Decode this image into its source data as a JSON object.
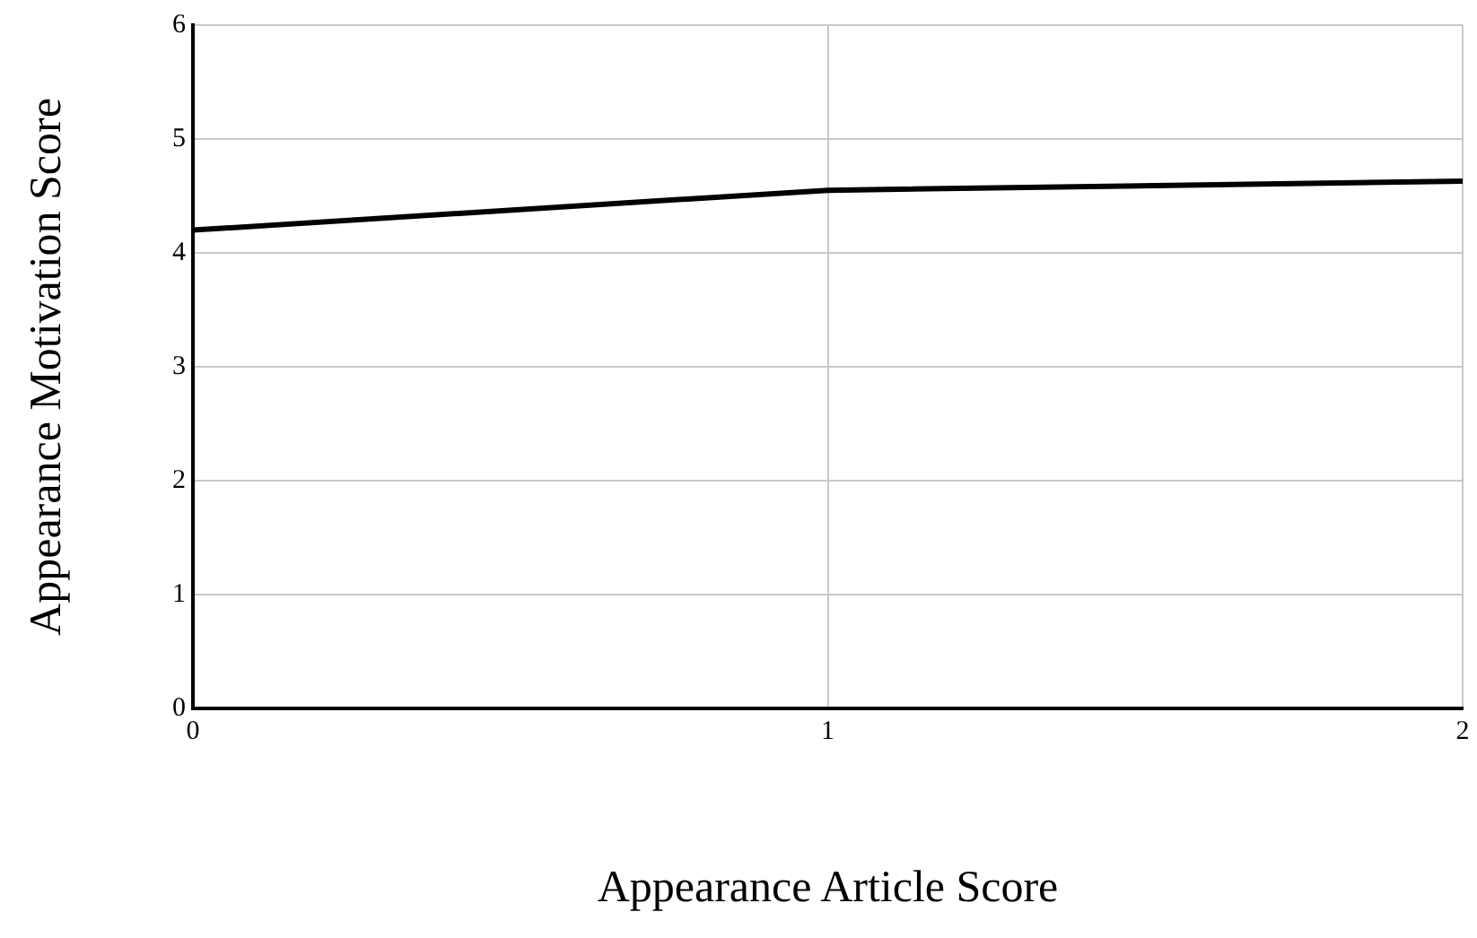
{
  "chart_data": {
    "type": "line",
    "xlabel": "Appearance Article Score",
    "ylabel": "Appearance Motivation Score",
    "x": [
      0,
      1,
      2
    ],
    "series": [
      {
        "color": "#000000",
        "values": [
          4.2,
          4.55,
          4.63
        ]
      }
    ],
    "xlim": [
      0,
      2
    ],
    "xticks": [
      0,
      1,
      2
    ],
    "ylim": [
      0,
      6
    ],
    "yticks": [
      0,
      1,
      2,
      3,
      4,
      5,
      6
    ],
    "grid": true,
    "legend": false,
    "marker": "none",
    "line_style": "solid"
  }
}
